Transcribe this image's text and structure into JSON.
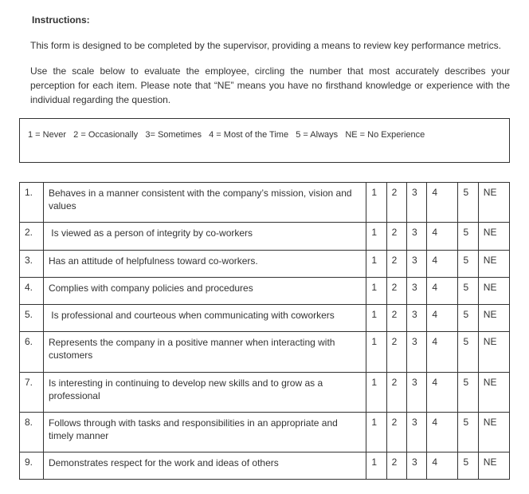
{
  "instructions": {
    "heading": "Instructions:",
    "para1": "This form is designed to be completed by the supervisor, providing a means to review key performance metrics.",
    "para2": "Use the scale below to evaluate the employee, circling the number that most accurately describes your perception for each item. Please note that “NE” means you have no firsthand knowledge or experience with the individual regarding the question."
  },
  "legend": "1 = Never   2 = Occasionally   3= Sometimes   4 = Most of the Time   5 = Always   NE = No Experience",
  "scale_options": [
    "1",
    "2",
    "3",
    "4",
    "5",
    "NE"
  ],
  "items": [
    {
      "n": "1.",
      "text": "Behaves in a manner consistent with the company’s mission, vision and values"
    },
    {
      "n": "2.",
      "text": " Is viewed as a person of integrity by co-workers"
    },
    {
      "n": "3.",
      "text": "Has an attitude of helpfulness toward co-workers."
    },
    {
      "n": "4.",
      "text": "Complies with company policies and procedures"
    },
    {
      "n": "5.",
      "text": " Is professional and courteous when communicating with coworkers"
    },
    {
      "n": "6.",
      "text": "Represents the company in a positive manner when interacting with customers"
    },
    {
      "n": "7.",
      "text": "Is interesting in continuing to develop new skills and to grow as a professional"
    },
    {
      "n": "8.",
      "text": "Follows through with tasks and responsibilities in an appropriate and timely manner"
    },
    {
      "n": "9.",
      "text": "Demonstrates respect for the work and ideas of others"
    }
  ]
}
